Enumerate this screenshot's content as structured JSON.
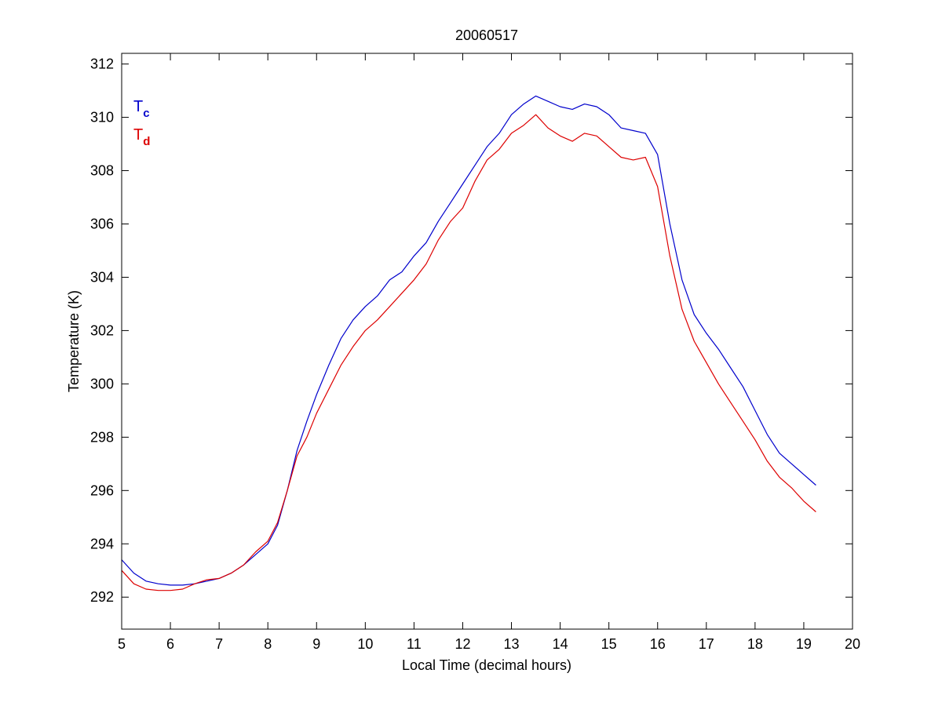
{
  "chart_data": {
    "type": "line",
    "title": "20060517",
    "xlabel": "Local Time (decimal hours)",
    "ylabel": "Temperature (K)",
    "xlim": [
      5,
      20
    ],
    "ylim": [
      290.8,
      312.4
    ],
    "xticks": [
      "5",
      "6",
      "7",
      "8",
      "9",
      "10",
      "11",
      "12",
      "13",
      "14",
      "15",
      "16",
      "17",
      "18",
      "19",
      "20"
    ],
    "yticks": [
      "292",
      "294",
      "296",
      "298",
      "300",
      "302",
      "304",
      "306",
      "308",
      "310",
      "312"
    ],
    "grid": false,
    "legend_position": "top-left",
    "legend": [
      {
        "main": "T",
        "sub": "c",
        "color": "#0000cc"
      },
      {
        "main": "T",
        "sub": "d",
        "color": "#dd0000"
      }
    ],
    "series": [
      {
        "color": "#0000cc",
        "x": [
          5.0,
          5.25,
          5.5,
          5.75,
          6.0,
          6.25,
          6.5,
          6.75,
          7.0,
          7.25,
          7.5,
          7.75,
          8.0,
          8.2,
          8.4,
          8.6,
          8.8,
          9.0,
          9.25,
          9.5,
          9.75,
          10.0,
          10.25,
          10.5,
          10.75,
          11.0,
          11.25,
          11.5,
          11.75,
          12.0,
          12.25,
          12.5,
          12.75,
          13.0,
          13.25,
          13.5,
          13.75,
          14.0,
          14.25,
          14.5,
          14.75,
          15.0,
          15.25,
          15.5,
          15.75,
          16.0,
          16.25,
          16.5,
          16.75,
          17.0,
          17.25,
          17.5,
          17.75,
          18.0,
          18.25,
          18.5,
          18.75,
          19.0,
          19.25
        ],
        "values": [
          293.4,
          292.9,
          292.6,
          292.5,
          292.45,
          292.45,
          292.5,
          292.6,
          292.7,
          292.9,
          293.2,
          293.6,
          294.0,
          294.7,
          296.0,
          297.5,
          298.6,
          299.6,
          300.7,
          301.7,
          302.4,
          302.9,
          303.3,
          303.9,
          304.2,
          304.8,
          305.3,
          306.1,
          306.8,
          307.5,
          308.2,
          308.9,
          309.4,
          310.1,
          310.5,
          310.8,
          310.6,
          310.4,
          310.3,
          310.5,
          310.4,
          310.1,
          309.6,
          309.5,
          309.4,
          308.6,
          306.0,
          303.9,
          302.6,
          301.9,
          301.3,
          300.6,
          299.9,
          299.0,
          298.1,
          297.4,
          297.0,
          296.6,
          296.2
        ]
      },
      {
        "color": "#dd0000",
        "x": [
          5.0,
          5.25,
          5.5,
          5.75,
          6.0,
          6.25,
          6.5,
          6.75,
          7.0,
          7.25,
          7.5,
          7.75,
          8.0,
          8.2,
          8.4,
          8.6,
          8.8,
          9.0,
          9.25,
          9.5,
          9.75,
          10.0,
          10.25,
          10.5,
          10.75,
          11.0,
          11.25,
          11.5,
          11.75,
          12.0,
          12.25,
          12.5,
          12.75,
          13.0,
          13.25,
          13.5,
          13.75,
          14.0,
          14.25,
          14.5,
          14.75,
          15.0,
          15.25,
          15.5,
          15.75,
          16.0,
          16.25,
          16.5,
          16.75,
          17.0,
          17.25,
          17.5,
          17.75,
          18.0,
          18.25,
          18.5,
          18.75,
          19.0,
          19.25
        ],
        "values": [
          293.0,
          292.5,
          292.3,
          292.25,
          292.25,
          292.3,
          292.5,
          292.65,
          292.7,
          292.9,
          293.2,
          293.7,
          294.1,
          294.8,
          296.0,
          297.3,
          298.0,
          298.9,
          299.8,
          300.7,
          301.4,
          302.0,
          302.4,
          302.9,
          303.4,
          303.9,
          304.5,
          305.4,
          306.1,
          306.6,
          307.6,
          308.4,
          308.8,
          309.4,
          309.7,
          310.1,
          309.6,
          309.3,
          309.1,
          309.4,
          309.3,
          308.9,
          308.5,
          308.4,
          308.5,
          307.4,
          304.8,
          302.8,
          301.6,
          300.8,
          300.0,
          299.3,
          298.6,
          297.9,
          297.1,
          296.5,
          296.1,
          295.6,
          295.2
        ]
      }
    ]
  }
}
